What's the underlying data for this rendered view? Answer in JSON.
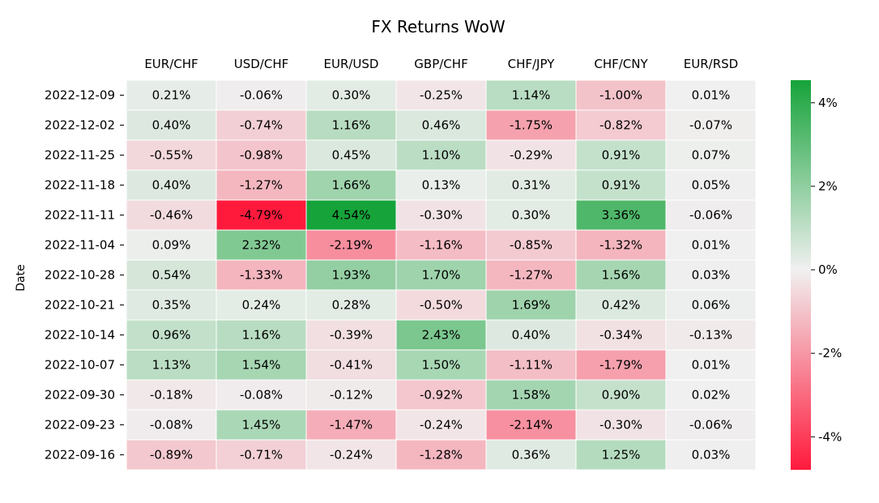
{
  "chart_data": {
    "type": "heatmap",
    "title": "FX Returns WoW",
    "ylabel": "Date",
    "xlabel": "",
    "columns": [
      "EUR/CHF",
      "USD/CHF",
      "EUR/USD",
      "GBP/CHF",
      "CHF/JPY",
      "CHF/CNY",
      "EUR/RSD"
    ],
    "rows": [
      "2022-12-09",
      "2022-12-02",
      "2022-11-25",
      "2022-11-18",
      "2022-11-11",
      "2022-11-04",
      "2022-10-28",
      "2022-10-21",
      "2022-10-14",
      "2022-10-07",
      "2022-09-30",
      "2022-09-23",
      "2022-09-16"
    ],
    "values": [
      [
        0.21,
        -0.06,
        0.3,
        -0.25,
        1.14,
        -1.0,
        0.01
      ],
      [
        0.4,
        -0.74,
        1.16,
        0.46,
        -1.75,
        -0.82,
        -0.07
      ],
      [
        -0.55,
        -0.98,
        0.45,
        1.1,
        -0.29,
        0.91,
        0.07
      ],
      [
        0.4,
        -1.27,
        1.66,
        0.13,
        0.31,
        0.91,
        0.05
      ],
      [
        -0.46,
        -4.79,
        4.54,
        -0.3,
        0.3,
        3.36,
        -0.06
      ],
      [
        0.09,
        2.32,
        -2.19,
        -1.16,
        -0.85,
        -1.32,
        0.01
      ],
      [
        0.54,
        -1.33,
        1.93,
        1.7,
        -1.27,
        1.56,
        0.03
      ],
      [
        0.35,
        0.24,
        0.28,
        -0.5,
        1.69,
        0.42,
        0.06
      ],
      [
        0.96,
        1.16,
        -0.39,
        2.43,
        0.4,
        -0.34,
        -0.13
      ],
      [
        1.13,
        1.54,
        -0.41,
        1.5,
        -1.11,
        -1.79,
        0.01
      ],
      [
        -0.18,
        -0.08,
        -0.12,
        -0.92,
        1.58,
        0.9,
        0.02
      ],
      [
        -0.08,
        1.45,
        -1.47,
        -0.24,
        -2.14,
        -0.3,
        -0.06
      ],
      [
        -0.89,
        -0.71,
        -0.24,
        -1.28,
        0.36,
        1.25,
        0.03
      ]
    ],
    "value_format": "percent_2dp",
    "color_range": [
      -4.79,
      4.54
    ],
    "colorbar_ticks": [
      "-4%",
      "-2%",
      "0%",
      "2%",
      "4%"
    ],
    "colorbar_tick_values": [
      -4,
      -2,
      0,
      2,
      4
    ],
    "colors": {
      "negative": "#ff1a3c",
      "neutral": "#f0f0f0",
      "positive": "#16a33a"
    },
    "grid": false,
    "legend": "colorbar-right"
  }
}
